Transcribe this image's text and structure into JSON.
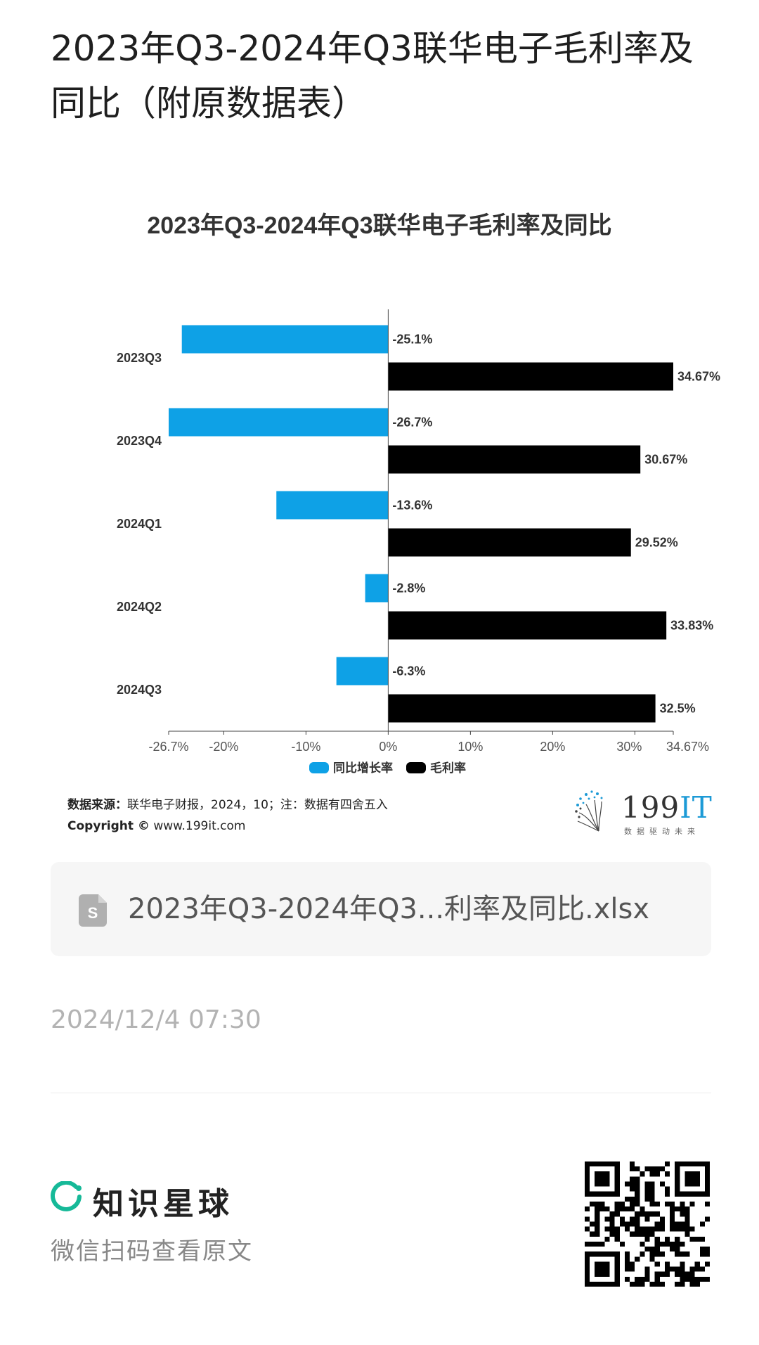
{
  "page": {
    "title": "2023年Q3-2024年Q3联华电子毛利率及同比（附原数据表）"
  },
  "chart_data": {
    "type": "bar",
    "orientation": "horizontal",
    "title": "2023年Q3-2024年Q3联华电子毛利率及同比",
    "categories": [
      "2023Q3",
      "2023Q4",
      "2024Q1",
      "2024Q2",
      "2024Q3"
    ],
    "series": [
      {
        "name": "同比增长率",
        "color": "#0ea1e6",
        "values": [
          -25.1,
          -26.7,
          -13.6,
          -2.8,
          -6.3
        ],
        "labels": [
          "-25.1%",
          "-26.7%",
          "-13.6%",
          "-2.8%",
          "-6.3%"
        ]
      },
      {
        "name": "毛利率",
        "color": "#000000",
        "values": [
          34.67,
          30.67,
          29.52,
          33.83,
          32.5
        ],
        "labels": [
          "34.67%",
          "30.67%",
          "29.52%",
          "33.83%",
          "32.5%"
        ]
      }
    ],
    "xlim": [
      -26.7,
      34.67
    ],
    "xticks": [
      -26.7,
      -20,
      -10,
      0,
      10,
      20,
      30,
      34.67
    ],
    "xtick_labels": [
      "-26.7%",
      "-20%",
      "-10%",
      "0%",
      "10%",
      "20%",
      "30%",
      "34.67%"
    ],
    "grid": false,
    "legend_position": "bottom-center"
  },
  "source": {
    "label": "数据来源：",
    "text": "联华电子财报，2024，10；注：数据有四舍五入",
    "copyright_label": "Copyright ©",
    "url": "www.199it.com"
  },
  "logo": {
    "text_num": "199",
    "text_it": "IT",
    "tagline": "数据驱动未来",
    "accent_color": "#1c9ad6"
  },
  "attachment": {
    "filename": "2023年Q3-2024年Q3...利率及同比.xlsx",
    "icon": "spreadsheet-file-icon"
  },
  "timestamp": "2024/12/4 07:30",
  "footer": {
    "brand_name": "知识星球",
    "brand_icon": "planet-ring-icon",
    "brand_color": "#16b998",
    "scan_hint": "微信扫码查看原文"
  }
}
